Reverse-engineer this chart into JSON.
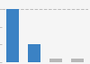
{
  "values": [
    57.0,
    19.0,
    3.5,
    3.5
  ],
  "bar_colors": [
    "#3b82c4",
    "#3b82c4",
    "#b8b8b8",
    "#b8b8b8"
  ],
  "bar_width": 0.55,
  "x_positions": [
    0,
    1,
    2,
    3
  ],
  "ylim": [
    0,
    65
  ],
  "dashed_line_y": 57.0,
  "xlim": [
    -0.5,
    3.5
  ],
  "background_color": "#f5f5f5",
  "plot_area_color": "#f5f5f5",
  "dash_color": "#bbbbbb",
  "tick_color": "#999999"
}
